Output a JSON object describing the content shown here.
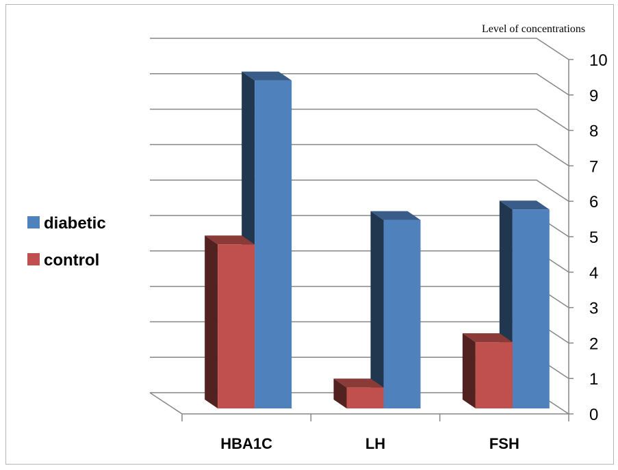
{
  "chart_data": {
    "type": "bar",
    "categories": [
      "HBA1C",
      "LH",
      "FSH"
    ],
    "series": [
      {
        "name": "control",
        "values": [
          4.7,
          0.6,
          1.9
        ],
        "color": "#c0504d"
      },
      {
        "name": "diabetic",
        "values": [
          9.4,
          5.4,
          5.7
        ],
        "color": "#4f81bd"
      }
    ],
    "ylabel": "Level of concentrations",
    "ylim": [
      0,
      10
    ],
    "yticks": [
      0,
      1,
      2,
      3,
      4,
      5,
      6,
      7,
      8,
      9,
      10
    ],
    "legend_order": [
      "diabetic",
      "control"
    ],
    "legend_position": "left",
    "grid": true,
    "style": "3d-clustered-column"
  }
}
